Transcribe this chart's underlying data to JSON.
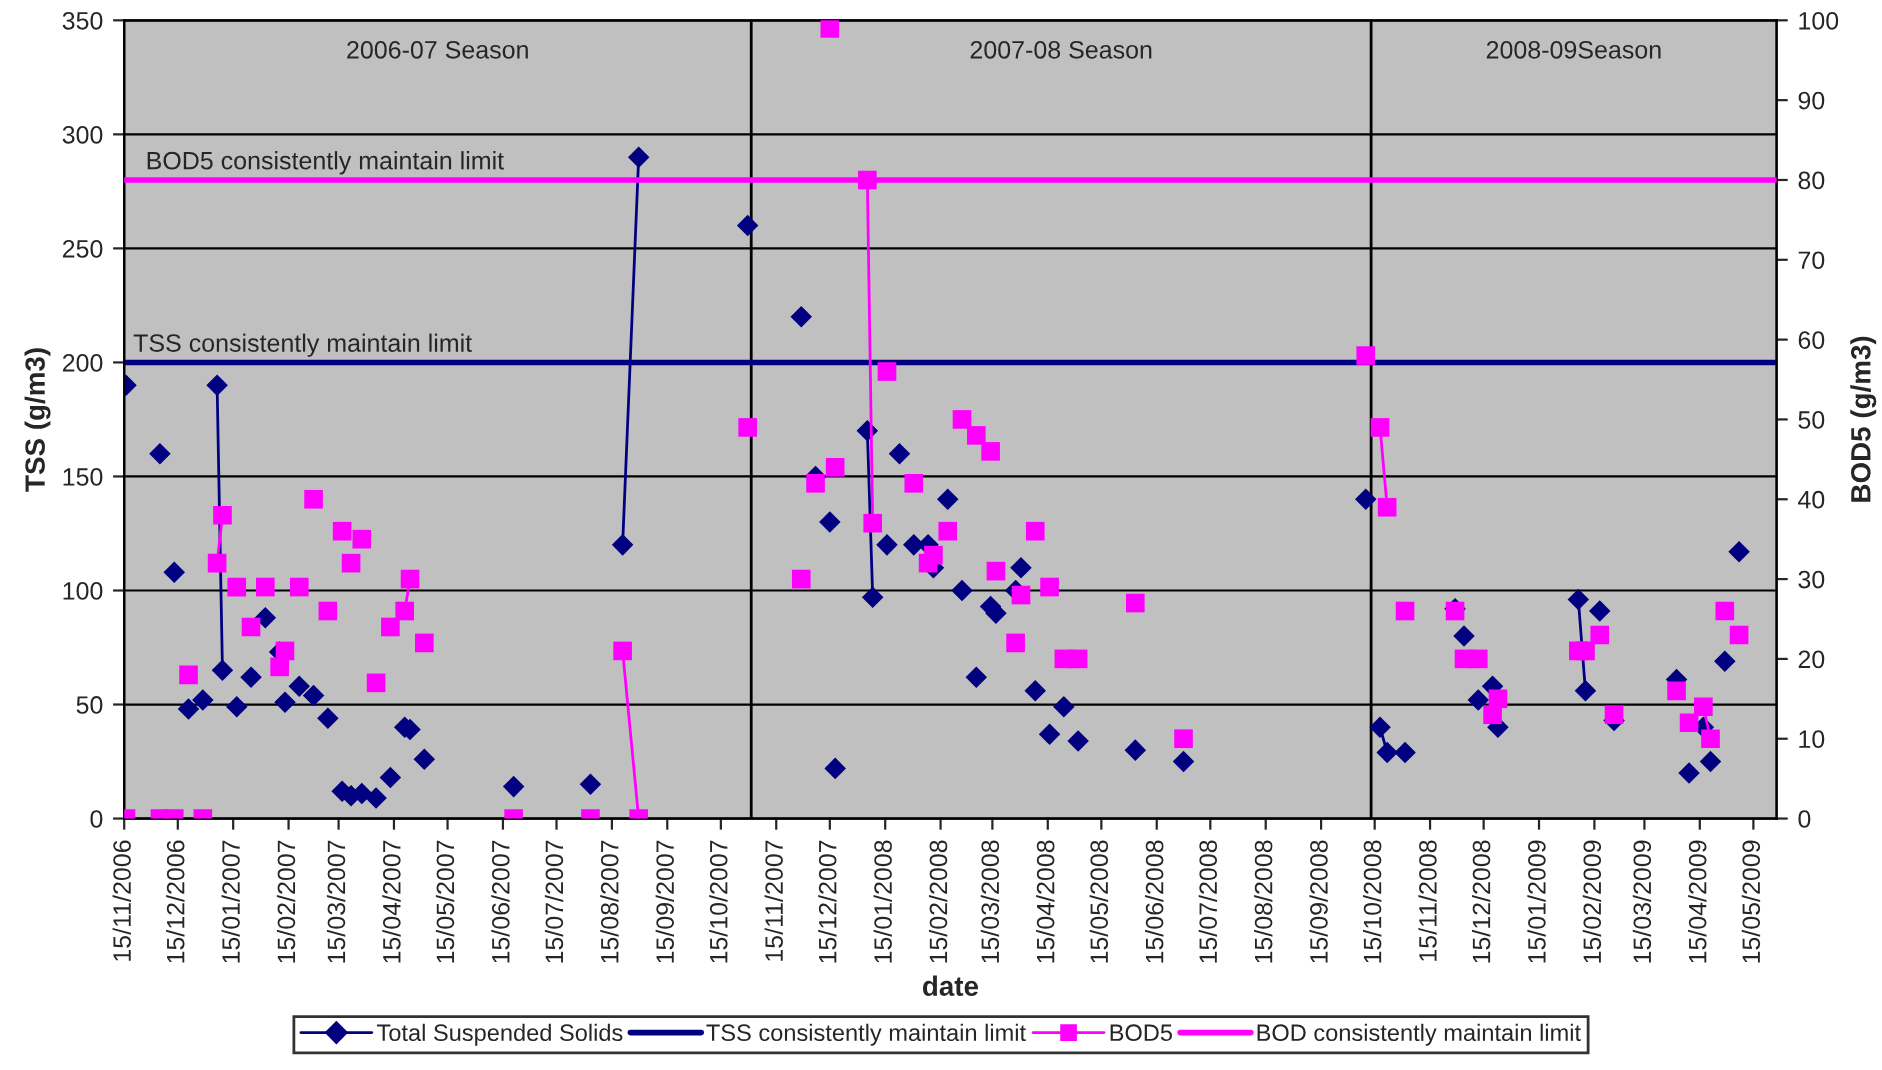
{
  "chart_data": {
    "type": "line",
    "xlabel": "date",
    "ylabel": "TSS (g/m3)",
    "y2label": "BOD5 (g/m3)",
    "xlim": [
      "2006-11-15",
      "2009-05-28"
    ],
    "xticks": [
      {
        "value": "2006-11-15",
        "label": "15/11/2006"
      },
      {
        "value": "2006-12-15",
        "label": "15/12/2006"
      },
      {
        "value": "2007-01-15",
        "label": "15/01/2007"
      },
      {
        "value": "2007-02-15",
        "label": "15/02/2007"
      },
      {
        "value": "2007-03-15",
        "label": "15/03/2007"
      },
      {
        "value": "2007-04-15",
        "label": "15/04/2007"
      },
      {
        "value": "2007-05-15",
        "label": "15/05/2007"
      },
      {
        "value": "2007-06-15",
        "label": "15/06/2007"
      },
      {
        "value": "2007-07-15",
        "label": "15/07/2007"
      },
      {
        "value": "2007-08-15",
        "label": "15/08/2007"
      },
      {
        "value": "2007-09-15",
        "label": "15/09/2007"
      },
      {
        "value": "2007-10-15",
        "label": "15/10/2007"
      },
      {
        "value": "2007-11-15",
        "label": "15/11/2007"
      },
      {
        "value": "2007-12-15",
        "label": "15/12/2007"
      },
      {
        "value": "2008-01-15",
        "label": "15/01/2008"
      },
      {
        "value": "2008-02-15",
        "label": "15/02/2008"
      },
      {
        "value": "2008-03-15",
        "label": "15/03/2008"
      },
      {
        "value": "2008-04-15",
        "label": "15/04/2008"
      },
      {
        "value": "2008-05-15",
        "label": "15/05/2008"
      },
      {
        "value": "2008-06-15",
        "label": "15/06/2008"
      },
      {
        "value": "2008-07-15",
        "label": "15/07/2008"
      },
      {
        "value": "2008-08-15",
        "label": "15/08/2008"
      },
      {
        "value": "2008-09-15",
        "label": "15/09/2008"
      },
      {
        "value": "2008-10-15",
        "label": "15/10/2008"
      },
      {
        "value": "2008-11-15",
        "label": "15/11/2008"
      },
      {
        "value": "2008-12-15",
        "label": "15/12/2008"
      },
      {
        "value": "2009-01-15",
        "label": "15/01/2009"
      },
      {
        "value": "2009-02-15",
        "label": "15/02/2009"
      },
      {
        "value": "2009-03-15",
        "label": "15/03/2009"
      },
      {
        "value": "2009-04-15",
        "label": "15/04/2009"
      },
      {
        "value": "2009-05-15",
        "label": "15/05/2009"
      }
    ],
    "ylim": [
      0,
      350
    ],
    "yticks": [
      0,
      50,
      100,
      150,
      200,
      250,
      300,
      350
    ],
    "y2lim": [
      0,
      100
    ],
    "y2ticks": [
      0,
      10,
      20,
      30,
      40,
      50,
      60,
      70,
      80,
      90,
      100
    ],
    "grid": "y",
    "legend": "bottom",
    "series": [
      {
        "name": "Total Suspended Solids",
        "color": "#000080",
        "marker": "diamond",
        "x": [
          "2006-11-16",
          "2006-11-17",
          "2006-12-05",
          "2006-12-06",
          "2006-12-13",
          "2006-12-14",
          "2006-12-21",
          "2006-12-22",
          "2006-12-29",
          "2006-12-30",
          "2007-01-06",
          "2007-01-09",
          "2007-01-10",
          "2007-01-17",
          "2007-01-18",
          "2007-01-25",
          "2007-01-26",
          "2007-02-02",
          "2007-02-03",
          "2007-02-10",
          "2007-02-11",
          "2007-02-13",
          "2007-02-14",
          "2007-02-21",
          "2007-02-22",
          "2007-03-01",
          "2007-03-02",
          "2007-03-09",
          "2007-03-10",
          "2007-03-17",
          "2007-03-18",
          "2007-03-22",
          "2007-03-23",
          "2007-03-28",
          "2007-03-29",
          "2007-04-05",
          "2007-04-06",
          "2007-04-13",
          "2007-04-14",
          "2007-04-21",
          "2007-04-22",
          "2007-04-24",
          "2007-04-25",
          "2007-05-02",
          "2007-05-03",
          "2007-06-21",
          "2007-06-22",
          "2007-08-03",
          "2007-08-04",
          "2007-08-21",
          "2007-08-30",
          "2007-08-31",
          "2007-10-30",
          "2007-10-31",
          "2007-11-29",
          "2007-11-30",
          "2007-12-07",
          "2007-12-08",
          "2007-12-15",
          "2007-12-16",
          "2007-12-18",
          "2007-12-19",
          "2008-01-05",
          "2008-01-08",
          "2008-01-09",
          "2008-01-16",
          "2008-01-17",
          "2008-01-23",
          "2008-01-24",
          "2008-01-31",
          "2008-02-01",
          "2008-02-08",
          "2008-02-09",
          "2008-02-11",
          "2008-02-12",
          "2008-02-19",
          "2008-02-20",
          "2008-02-27",
          "2008-02-28",
          "2008-03-06",
          "2008-03-07",
          "2008-03-14",
          "2008-03-15",
          "2008-03-17",
          "2008-03-18",
          "2008-03-28",
          "2008-03-29",
          "2008-03-31",
          "2008-04-01",
          "2008-04-08",
          "2008-04-09",
          "2008-04-16",
          "2008-04-17",
          "2008-04-24",
          "2008-04-25",
          "2008-05-02",
          "2008-05-03",
          "2008-06-03",
          "2008-06-04",
          "2008-06-30",
          "2008-07-01",
          "2008-10-10",
          "2008-10-11",
          "2008-10-18",
          "2008-10-22",
          "2008-10-23",
          "2008-11-01",
          "2008-11-02",
          "2008-11-29",
          "2008-11-30",
          "2008-12-04",
          "2008-12-05",
          "2008-12-12",
          "2008-12-13",
          "2008-12-20",
          "2008-12-21",
          "2008-12-23",
          "2008-12-24",
          "2009-02-06",
          "2009-02-10",
          "2009-02-11",
          "2009-02-18",
          "2009-02-19",
          "2009-02-26",
          "2009-02-27",
          "2009-04-02",
          "2009-04-03",
          "2009-04-09",
          "2009-04-10",
          "2009-04-17",
          "2009-04-18",
          "2009-04-21",
          "2009-04-22",
          "2009-04-29",
          "2009-04-30",
          "2009-05-07"
        ],
        "values": [
          190,
          null,
          160,
          null,
          108,
          null,
          48,
          null,
          52,
          null,
          190,
          65,
          null,
          49,
          null,
          62,
          null,
          88,
          null,
          73,
          null,
          51,
          null,
          58,
          null,
          54,
          null,
          44,
          null,
          12,
          null,
          10,
          null,
          11,
          null,
          9,
          null,
          18,
          null,
          40,
          null,
          39,
          null,
          26,
          null,
          14,
          null,
          15,
          null,
          120,
          290,
          null,
          260,
          null,
          220,
          null,
          150,
          null,
          130,
          null,
          22,
          null,
          170,
          97,
          null,
          120,
          null,
          160,
          null,
          120,
          null,
          120,
          null,
          110,
          null,
          140,
          null,
          100,
          null,
          62,
          null,
          93,
          null,
          90,
          null,
          100,
          null,
          110,
          null,
          56,
          null,
          37,
          null,
          49,
          null,
          34,
          null,
          30,
          null,
          25,
          null,
          140,
          null,
          40,
          29,
          null,
          29,
          null,
          92,
          null,
          80,
          null,
          52,
          null,
          58,
          null,
          40,
          null,
          96,
          56,
          null,
          91,
          null,
          43,
          null,
          61,
          null,
          20,
          null,
          40,
          null,
          25,
          null,
          69,
          null,
          117
        ]
      },
      {
        "name": "TSS consistently maintain limit",
        "color": "#000080",
        "marker": "none",
        "x": [
          "2006-11-15",
          "2009-05-28"
        ],
        "values": [
          200,
          200
        ]
      },
      {
        "name": "BOD5",
        "color": "#ff00ff",
        "marker": "square",
        "axis": "y2",
        "x": [
          "2006-11-16",
          "2006-11-17",
          "2006-12-05",
          "2006-12-06",
          "2006-12-13",
          "2006-12-14",
          "2006-12-21",
          "2006-12-22",
          "2006-12-29",
          "2006-12-30",
          "2007-01-06",
          "2007-01-09",
          "2007-01-10",
          "2007-01-17",
          "2007-01-18",
          "2007-01-25",
          "2007-01-26",
          "2007-02-02",
          "2007-02-03",
          "2007-02-10",
          "2007-02-11",
          "2007-02-13",
          "2007-02-14",
          "2007-02-21",
          "2007-02-22",
          "2007-03-01",
          "2007-03-02",
          "2007-03-09",
          "2007-03-10",
          "2007-03-17",
          "2007-03-18",
          "2007-03-22",
          "2007-03-23",
          "2007-03-28",
          "2007-03-29",
          "2007-04-05",
          "2007-04-06",
          "2007-04-13",
          "2007-04-14",
          "2007-04-21",
          "2007-04-24",
          "2007-04-25",
          "2007-05-02",
          "2007-05-03",
          "2007-06-21",
          "2007-06-22",
          "2007-08-03",
          "2007-08-04",
          "2007-08-21",
          "2007-08-30",
          "2007-08-31",
          "2007-10-30",
          "2007-10-31",
          "2007-11-29",
          "2007-11-30",
          "2007-12-07",
          "2007-12-08",
          "2007-12-15",
          "2007-12-16",
          "2007-12-18",
          "2007-12-19",
          "2008-01-05",
          "2008-01-08",
          "2008-01-09",
          "2008-01-16",
          "2008-01-17",
          "2008-01-31",
          "2008-02-01",
          "2008-02-08",
          "2008-02-09",
          "2008-02-11",
          "2008-02-12",
          "2008-02-19",
          "2008-02-20",
          "2008-02-27",
          "2008-02-28",
          "2008-03-06",
          "2008-03-07",
          "2008-03-14",
          "2008-03-15",
          "2008-03-17",
          "2008-03-18",
          "2008-03-28",
          "2008-03-29",
          "2008-03-31",
          "2008-04-01",
          "2008-04-08",
          "2008-04-09",
          "2008-04-16",
          "2008-04-17",
          "2008-04-24",
          "2008-04-25",
          "2008-05-02",
          "2008-05-03",
          "2008-06-03",
          "2008-06-04",
          "2008-06-30",
          "2008-07-01",
          "2008-10-10",
          "2008-10-11",
          "2008-10-18",
          "2008-10-22",
          "2008-10-23",
          "2008-11-01",
          "2008-11-02",
          "2008-11-29",
          "2008-11-30",
          "2008-12-04",
          "2008-12-05",
          "2008-12-12",
          "2008-12-13",
          "2008-12-20",
          "2008-12-21",
          "2008-12-23",
          "2008-12-24",
          "2009-02-06",
          "2009-02-07",
          "2009-02-10",
          "2009-02-11",
          "2009-02-18",
          "2009-02-19",
          "2009-02-26",
          "2009-02-27",
          "2009-04-02",
          "2009-04-03",
          "2009-04-09",
          "2009-04-10",
          "2009-04-17",
          "2009-04-21",
          "2009-04-22",
          "2009-04-29",
          "2009-04-30",
          "2009-05-07"
        ],
        "values": [
          0,
          null,
          0,
          null,
          0,
          null,
          18,
          null,
          0,
          null,
          32,
          38,
          null,
          29,
          null,
          24,
          null,
          29,
          null,
          19,
          null,
          21,
          null,
          29,
          null,
          40,
          null,
          26,
          null,
          36,
          null,
          32,
          null,
          35,
          null,
          17,
          null,
          24,
          null,
          26,
          30,
          null,
          22,
          null,
          0,
          null,
          0,
          null,
          21,
          0,
          null,
          49,
          null,
          30,
          null,
          42,
          null,
          99,
          null,
          44,
          null,
          80,
          37,
          null,
          56,
          null,
          42,
          null,
          32,
          null,
          33,
          null,
          36,
          null,
          50,
          null,
          48,
          null,
          46,
          null,
          31,
          null,
          22,
          null,
          28,
          null,
          36,
          null,
          29,
          null,
          20,
          null,
          20,
          null,
          27,
          null,
          10,
          null,
          58,
          null,
          49,
          39,
          null,
          26,
          null,
          26,
          null,
          20,
          null,
          20,
          null,
          13,
          null,
          15,
          null,
          21,
          null,
          21,
          null,
          23,
          null,
          13,
          null,
          16,
          null,
          12,
          null,
          14,
          10,
          null,
          26,
          null,
          23
        ]
      },
      {
        "name": "BOD consistently maintain limit",
        "color": "#ff00ff",
        "marker": "none",
        "axis": "y2",
        "x": [
          "2006-11-15",
          "2009-05-28"
        ],
        "values": [
          80,
          80
        ]
      }
    ],
    "annotations": [
      "2006-07 Season",
      "2007-08 Season",
      "2008-09Season",
      {
        "text": "BOD5 consistently maintain limit",
        "x": "2006-11-27",
        "y": 280
      },
      {
        "text": "TSS consistently maintain limit",
        "x": "2006-11-20",
        "y": 200
      }
    ],
    "ref_lines": [
      {
        "axis": "x",
        "value": "2007-11-01",
        "label": null,
        "color": "#000000"
      },
      {
        "axis": "x",
        "value": "2008-10-13",
        "label": null,
        "color": "#000000"
      }
    ]
  }
}
